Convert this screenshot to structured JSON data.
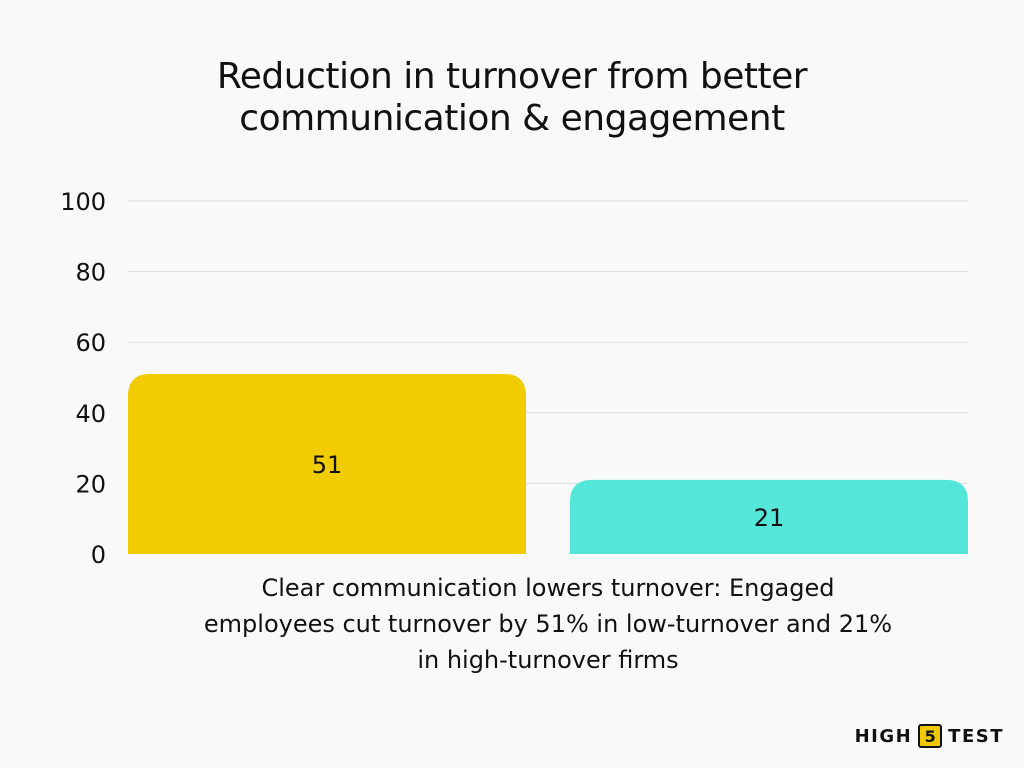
{
  "title_lines": [
    "Reduction in turnover from better",
    "communication & engagement"
  ],
  "caption_lines": [
    "Clear communication lowers turnover: Engaged",
    "employees cut turnover by 51% in low-turnover and 21%",
    "in high-turnover firms"
  ],
  "logo": {
    "word1": "HIGH",
    "number": "5",
    "word2": "TEST"
  },
  "chart_data": {
    "type": "bar",
    "title": "Reduction in turnover from better communication & engagement",
    "values": [
      51,
      21
    ],
    "data_labels": [
      "51",
      "21"
    ],
    "colors": [
      "#f0cc00",
      "#55e6da"
    ],
    "ylim": [
      0,
      100
    ],
    "yticks": [
      0,
      20,
      40,
      60,
      80,
      100
    ],
    "grid": true,
    "legend": "none"
  }
}
